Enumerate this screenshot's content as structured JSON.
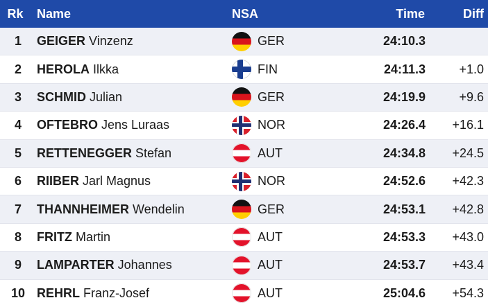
{
  "header": {
    "rk": "Rk",
    "name": "Name",
    "nsa": "NSA",
    "time": "Time",
    "diff": "Diff"
  },
  "rows": [
    {
      "rk": "1",
      "last": "GEIGER",
      "first": "Vinzenz",
      "flag": "ger",
      "nsa": "GER",
      "time": "24:10.3",
      "diff": ""
    },
    {
      "rk": "2",
      "last": "HEROLA",
      "first": "Ilkka",
      "flag": "fin",
      "nsa": "FIN",
      "time": "24:11.3",
      "diff": "+1.0"
    },
    {
      "rk": "3",
      "last": "SCHMID",
      "first": "Julian",
      "flag": "ger",
      "nsa": "GER",
      "time": "24:19.9",
      "diff": "+9.6"
    },
    {
      "rk": "4",
      "last": "OFTEBRO",
      "first": "Jens Luraas",
      "flag": "nor",
      "nsa": "NOR",
      "time": "24:26.4",
      "diff": "+16.1"
    },
    {
      "rk": "5",
      "last": "RETTENEGGER",
      "first": "Stefan",
      "flag": "aut",
      "nsa": "AUT",
      "time": "24:34.8",
      "diff": "+24.5"
    },
    {
      "rk": "6",
      "last": "RIIBER",
      "first": "Jarl Magnus",
      "flag": "nor",
      "nsa": "NOR",
      "time": "24:52.6",
      "diff": "+42.3"
    },
    {
      "rk": "7",
      "last": "THANNHEIMER",
      "first": "Wendelin",
      "flag": "ger",
      "nsa": "GER",
      "time": "24:53.1",
      "diff": "+42.8"
    },
    {
      "rk": "8",
      "last": "FRITZ",
      "first": "Martin",
      "flag": "aut",
      "nsa": "AUT",
      "time": "24:53.3",
      "diff": "+43.0"
    },
    {
      "rk": "9",
      "last": "LAMPARTER",
      "first": "Johannes",
      "flag": "aut",
      "nsa": "AUT",
      "time": "24:53.7",
      "diff": "+43.4"
    },
    {
      "rk": "10",
      "last": "REHRL",
      "first": "Franz-Josef",
      "flag": "aut",
      "nsa": "AUT",
      "time": "25:04.6",
      "diff": "+54.3"
    }
  ],
  "colors": {
    "header_bg": "#1f4aa8",
    "row_alt_bg": "#eef0f6"
  },
  "icons": {
    "ger": "germany-flag-icon",
    "fin": "finland-flag-icon",
    "nor": "norway-flag-icon",
    "aut": "austria-flag-icon"
  }
}
